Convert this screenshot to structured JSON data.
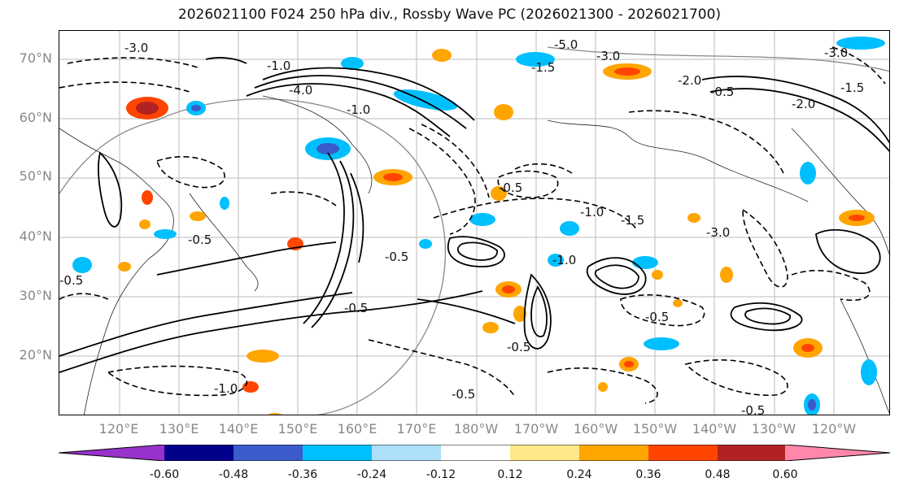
{
  "title": "2026021100 F024 250 hPa div., Rossby Wave PC (2026021300 - 2026021700)",
  "map": {
    "lat_labels": [
      "70°N",
      "60°N",
      "50°N",
      "40°N",
      "30°N",
      "20°N"
    ],
    "lon_labels": [
      "120°E",
      "130°E",
      "140°E",
      "150°E",
      "160°E",
      "170°E",
      "180°W",
      "170°W",
      "160°W",
      "150°W",
      "140°W",
      "130°W",
      "120°W"
    ],
    "contour_labels": [
      "-3.0",
      "-5.0",
      "-1.0",
      "-4.0",
      "-3.0",
      "-1.5",
      "-1.0",
      "-0.5",
      "-0.5",
      "-0.5",
      "-3.0",
      "-1.0",
      "-0.5",
      "-0.5",
      "-1.0",
      "-1.5",
      "-0.5",
      "-2.0",
      "-0.5",
      "-1.0",
      "-0.5",
      "-0.5",
      "-2.0",
      "-3.0",
      "-0.5",
      "-1.5"
    ]
  },
  "colorbar": {
    "ticks": [
      "-0.60",
      "-0.48",
      "-0.36",
      "-0.24",
      "-0.12",
      "0.12",
      "0.24",
      "0.36",
      "0.48",
      "0.60"
    ],
    "colors": [
      "#9932CC",
      "#00008B",
      "#3B5BCB",
      "#00BFFF",
      "#ADDFF8",
      "#FFFFFF",
      "#FFE88A",
      "#FFA500",
      "#FF4500",
      "#B22222",
      "#FF88AA"
    ]
  }
}
